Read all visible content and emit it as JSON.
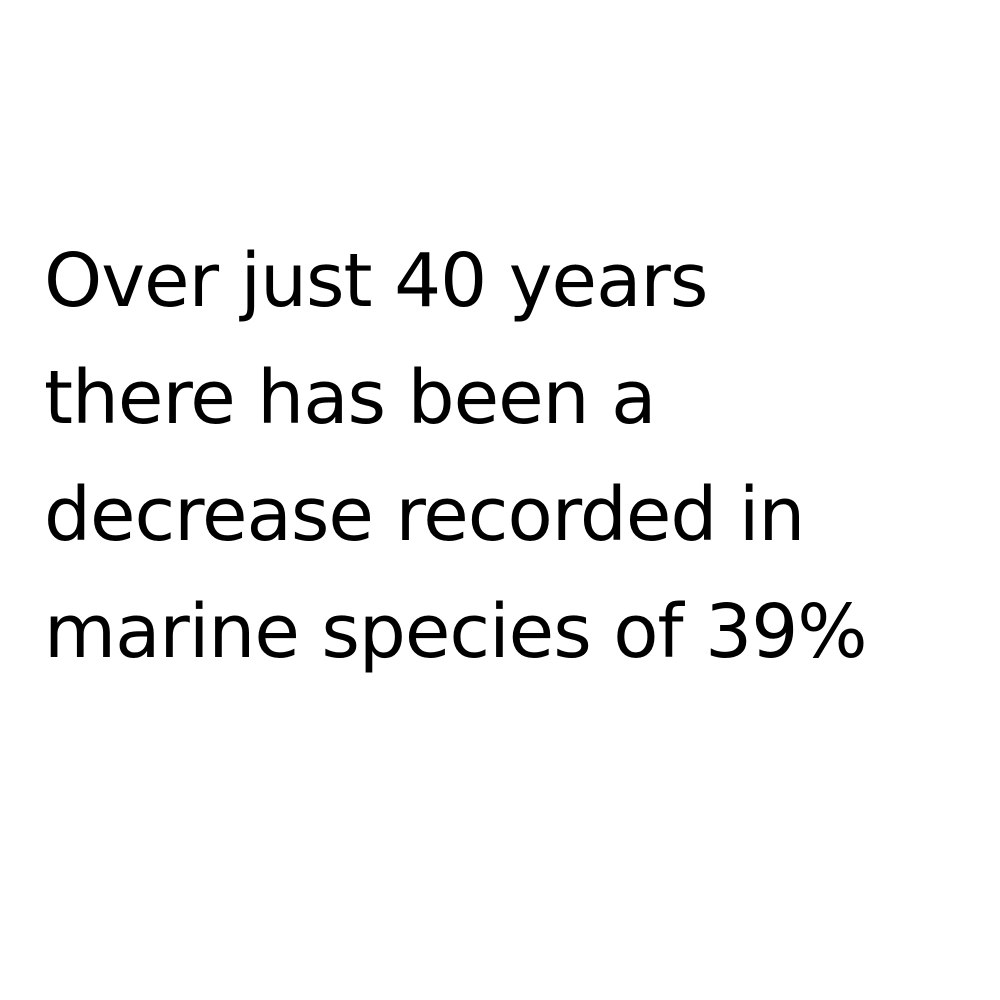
{
  "statement": {
    "lines": [
      "Over just 40 years",
      "there has been a",
      "decrease recorded in",
      "marine species of 39%"
    ]
  },
  "colors": {
    "background": "#ffffff",
    "text": "#000000"
  }
}
